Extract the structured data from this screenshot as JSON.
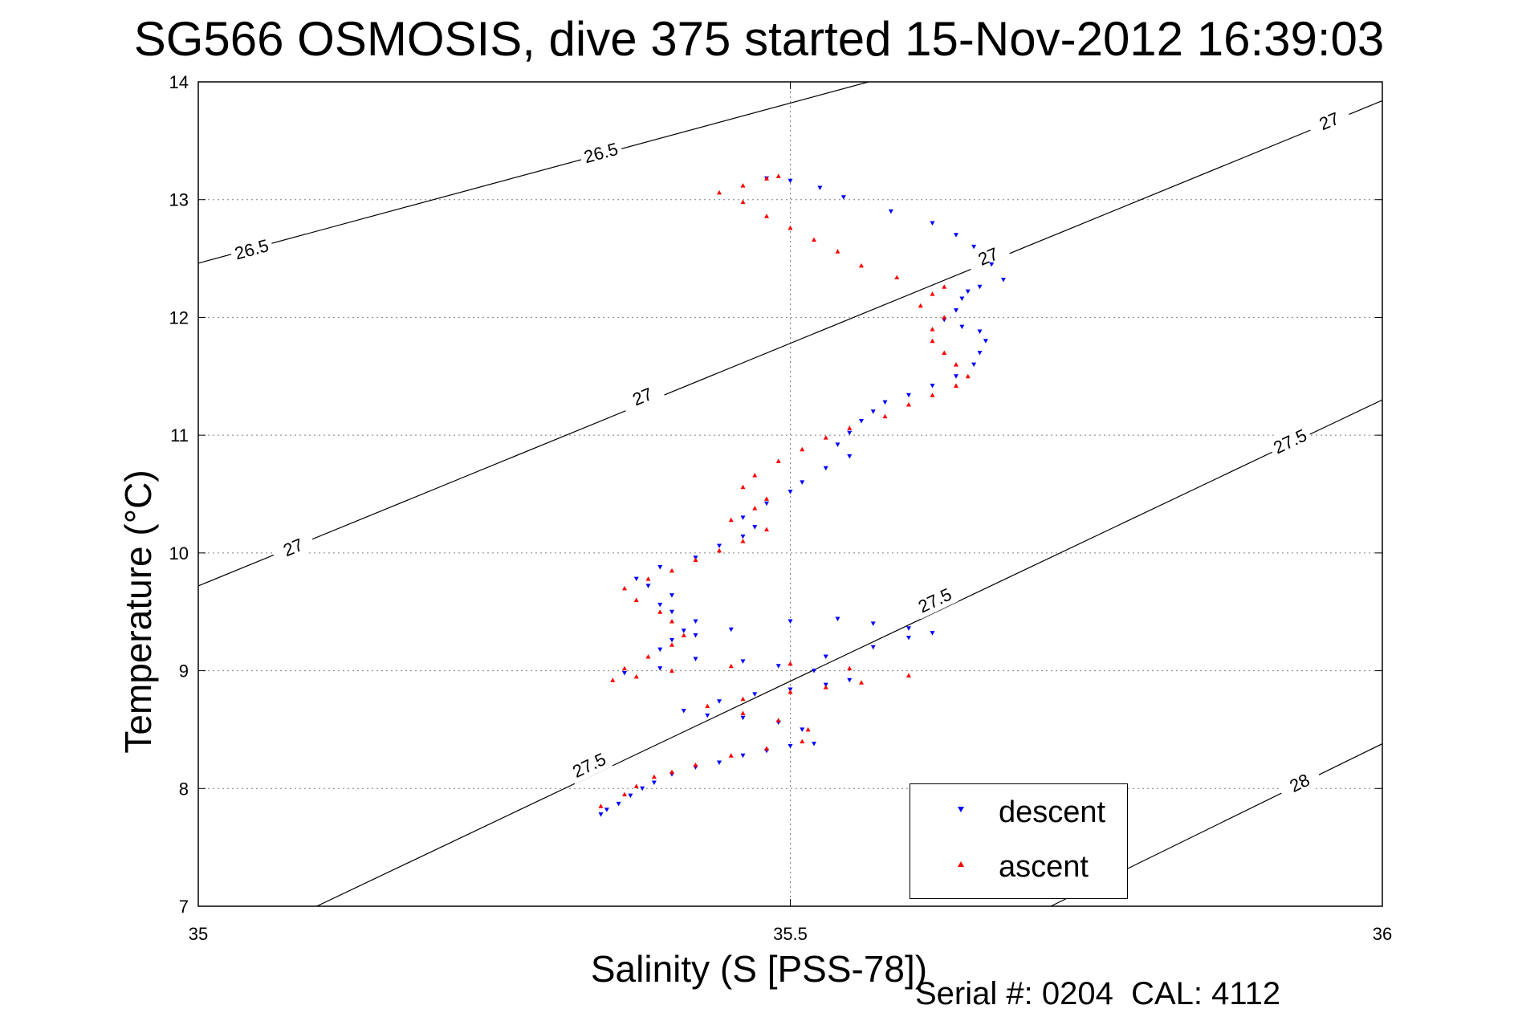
{
  "figure": {
    "title": "SG566 OSMOSIS, dive 375 started 15-Nov-2012 16:39:03",
    "xlabel": "Salinity (S [PSS-78])",
    "ylabel": "Temperature (°C)",
    "footer": "Serial #: 0204  CAL: 4112"
  },
  "legend": {
    "descent_label": "descent",
    "ascent_label": "ascent"
  },
  "colors": {
    "descent": "#0000ff",
    "ascent": "#ff0000",
    "contour": "#000000",
    "grid": "#808080"
  },
  "chart_data": {
    "type": "scatter",
    "title": "SG566 OSMOSIS, dive 375 started 15-Nov-2012 16:39:03",
    "xlabel": "Salinity (S [PSS-78])",
    "ylabel": "Temperature (°C)",
    "xlim": [
      35,
      36
    ],
    "ylim": [
      7,
      14
    ],
    "xticks": [
      35,
      35.5,
      36
    ],
    "xtick_labels": [
      "35",
      "35.5",
      "36"
    ],
    "yticks": [
      7,
      8,
      9,
      10,
      11,
      12,
      13,
      14
    ],
    "ytick_labels": [
      "7",
      "8",
      "9",
      "10",
      "11",
      "12",
      "13",
      "14"
    ],
    "grid": true,
    "legend_position": "bottom-right",
    "contours": [
      {
        "label": "26.5",
        "points": [
          [
            35,
            12.46
          ],
          [
            36,
            15.18
          ]
        ],
        "labels_at": [
          [
            35.045,
            12.58
          ],
          [
            35.34,
            13.4
          ]
        ]
      },
      {
        "label": "27",
        "points": [
          [
            35,
            9.72
          ],
          [
            36,
            13.84
          ]
        ],
        "labels_at": [
          [
            35.08,
            10.05
          ],
          [
            35.375,
            11.33
          ],
          [
            35.667,
            12.52
          ],
          [
            35.955,
            13.67
          ]
        ]
      },
      {
        "label": "27.5",
        "points": [
          [
            35.1,
            7
          ],
          [
            36,
            11.3
          ]
        ],
        "labels_at": [
          [
            35.33,
            8.2
          ],
          [
            35.622,
            9.6
          ],
          [
            35.922,
            10.95
          ]
        ]
      },
      {
        "label": "28",
        "points": [
          [
            35.72,
            7
          ],
          [
            36,
            8.38
          ]
        ],
        "labels_at": [
          [
            35.93,
            8.05
          ]
        ]
      }
    ],
    "series": [
      {
        "name": "descent",
        "marker": "triangle-down",
        "points": [
          [
            35.34,
            7.78
          ],
          [
            35.345,
            7.82
          ],
          [
            35.355,
            7.87
          ],
          [
            35.365,
            7.94
          ],
          [
            35.375,
            8.0
          ],
          [
            35.385,
            8.05
          ],
          [
            35.4,
            8.12
          ],
          [
            35.42,
            8.18
          ],
          [
            35.44,
            8.22
          ],
          [
            35.46,
            8.28
          ],
          [
            35.48,
            8.32
          ],
          [
            35.5,
            8.36
          ],
          [
            35.52,
            8.38
          ],
          [
            35.51,
            8.5
          ],
          [
            35.49,
            8.56
          ],
          [
            35.46,
            8.6
          ],
          [
            35.43,
            8.62
          ],
          [
            35.41,
            8.66
          ],
          [
            35.44,
            8.74
          ],
          [
            35.47,
            8.8
          ],
          [
            35.5,
            8.84
          ],
          [
            35.53,
            8.88
          ],
          [
            35.55,
            8.92
          ],
          [
            35.52,
            9.0
          ],
          [
            35.49,
            9.04
          ],
          [
            35.46,
            9.08
          ],
          [
            35.53,
            9.12
          ],
          [
            35.57,
            9.2
          ],
          [
            35.6,
            9.28
          ],
          [
            35.62,
            9.32
          ],
          [
            35.6,
            9.36
          ],
          [
            35.57,
            9.4
          ],
          [
            35.54,
            9.44
          ],
          [
            35.5,
            9.42
          ],
          [
            35.45,
            9.35
          ],
          [
            35.42,
            9.3
          ],
          [
            35.4,
            9.26
          ],
          [
            35.42,
            9.1
          ],
          [
            35.39,
            9.02
          ],
          [
            35.36,
            8.98
          ],
          [
            35.39,
            9.18
          ],
          [
            35.41,
            9.34
          ],
          [
            35.42,
            9.42
          ],
          [
            35.4,
            9.5
          ],
          [
            35.39,
            9.56
          ],
          [
            35.4,
            9.64
          ],
          [
            35.38,
            9.72
          ],
          [
            35.37,
            9.78
          ],
          [
            35.39,
            9.88
          ],
          [
            35.42,
            9.96
          ],
          [
            35.44,
            10.06
          ],
          [
            35.46,
            10.14
          ],
          [
            35.47,
            10.22
          ],
          [
            35.46,
            10.3
          ],
          [
            35.48,
            10.42
          ],
          [
            35.5,
            10.52
          ],
          [
            35.51,
            10.6
          ],
          [
            35.53,
            10.72
          ],
          [
            35.55,
            10.82
          ],
          [
            35.54,
            10.92
          ],
          [
            35.55,
            11.02
          ],
          [
            35.56,
            11.12
          ],
          [
            35.57,
            11.2
          ],
          [
            35.58,
            11.28
          ],
          [
            35.6,
            11.34
          ],
          [
            35.62,
            11.42
          ],
          [
            35.64,
            11.5
          ],
          [
            35.655,
            11.6
          ],
          [
            35.66,
            11.7
          ],
          [
            35.665,
            11.8
          ],
          [
            35.66,
            11.88
          ],
          [
            35.645,
            11.92
          ],
          [
            35.63,
            11.98
          ],
          [
            35.64,
            12.06
          ],
          [
            35.645,
            12.16
          ],
          [
            35.65,
            12.22
          ],
          [
            35.66,
            12.26
          ],
          [
            35.68,
            12.32
          ],
          [
            35.67,
            12.45
          ],
          [
            35.655,
            12.6
          ],
          [
            35.64,
            12.7
          ],
          [
            35.62,
            12.8
          ],
          [
            35.585,
            12.9
          ],
          [
            35.545,
            13.02
          ],
          [
            35.525,
            13.1
          ],
          [
            35.5,
            13.16
          ],
          [
            35.48,
            13.18
          ]
        ]
      },
      {
        "name": "ascent",
        "marker": "triangle-up",
        "points": [
          [
            35.34,
            7.85
          ],
          [
            35.36,
            7.95
          ],
          [
            35.37,
            8.02
          ],
          [
            35.385,
            8.1
          ],
          [
            35.4,
            8.14
          ],
          [
            35.42,
            8.2
          ],
          [
            35.45,
            8.28
          ],
          [
            35.48,
            8.34
          ],
          [
            35.51,
            8.4
          ],
          [
            35.515,
            8.5
          ],
          [
            35.49,
            8.58
          ],
          [
            35.46,
            8.64
          ],
          [
            35.43,
            8.7
          ],
          [
            35.46,
            8.76
          ],
          [
            35.5,
            8.82
          ],
          [
            35.53,
            8.86
          ],
          [
            35.56,
            8.9
          ],
          [
            35.6,
            8.96
          ],
          [
            35.55,
            9.02
          ],
          [
            35.5,
            9.06
          ],
          [
            35.45,
            9.04
          ],
          [
            35.4,
            9.0
          ],
          [
            35.37,
            8.95
          ],
          [
            35.35,
            8.92
          ],
          [
            35.36,
            9.02
          ],
          [
            35.38,
            9.12
          ],
          [
            35.4,
            9.22
          ],
          [
            35.41,
            9.3
          ],
          [
            35.4,
            9.42
          ],
          [
            35.39,
            9.5
          ],
          [
            35.37,
            9.6
          ],
          [
            35.36,
            9.7
          ],
          [
            35.38,
            9.78
          ],
          [
            35.4,
            9.85
          ],
          [
            35.42,
            9.94
          ],
          [
            35.44,
            10.02
          ],
          [
            35.46,
            10.1
          ],
          [
            35.48,
            10.2
          ],
          [
            35.45,
            10.28
          ],
          [
            35.47,
            10.38
          ],
          [
            35.48,
            10.46
          ],
          [
            35.46,
            10.56
          ],
          [
            35.47,
            10.66
          ],
          [
            35.49,
            10.78
          ],
          [
            35.51,
            10.88
          ],
          [
            35.53,
            10.98
          ],
          [
            35.55,
            11.06
          ],
          [
            35.58,
            11.16
          ],
          [
            35.6,
            11.26
          ],
          [
            35.62,
            11.34
          ],
          [
            35.64,
            11.42
          ],
          [
            35.65,
            11.5
          ],
          [
            35.64,
            11.6
          ],
          [
            35.63,
            11.7
          ],
          [
            35.62,
            11.8
          ],
          [
            35.62,
            11.9
          ],
          [
            35.63,
            12.0
          ],
          [
            35.61,
            12.1
          ],
          [
            35.62,
            12.2
          ],
          [
            35.63,
            12.26
          ],
          [
            35.59,
            12.34
          ],
          [
            35.56,
            12.44
          ],
          [
            35.54,
            12.56
          ],
          [
            35.52,
            12.66
          ],
          [
            35.5,
            12.76
          ],
          [
            35.48,
            12.86
          ],
          [
            35.46,
            12.98
          ],
          [
            35.44,
            13.06
          ],
          [
            35.46,
            13.12
          ],
          [
            35.48,
            13.18
          ],
          [
            35.49,
            13.2
          ]
        ]
      }
    ]
  }
}
